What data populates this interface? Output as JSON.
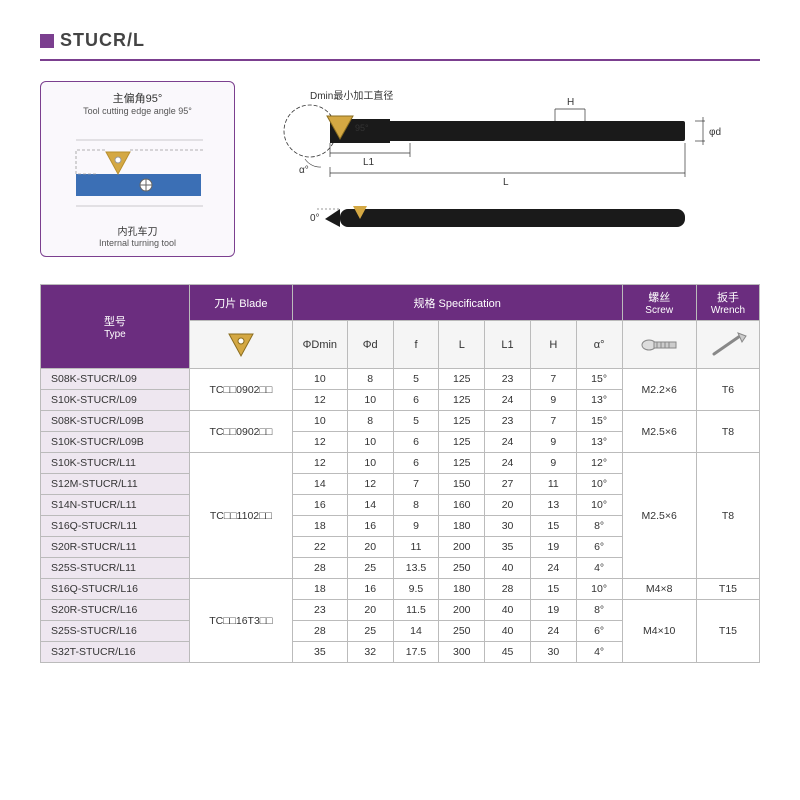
{
  "title": "STUCR/L",
  "colors": {
    "purple": "#6b2d7f",
    "purple_light": "#eee7f0",
    "purple_border": "#7b3f8f",
    "border": "#bbb",
    "blade_gold": "#d4a843",
    "tool_blue": "#3b6fb5",
    "tool_black": "#1a1a1a"
  },
  "callout": {
    "title_cn": "主偏角95°",
    "title_en": "Tool cutting edge angle 95°",
    "sub_cn": "内孔车刀",
    "sub_en": "Internal turning tool"
  },
  "tech_labels": {
    "dmin_cn": "Dmin最小加工直径",
    "angle_95": "95°",
    "L1": "L1",
    "L": "L",
    "H": "H",
    "d": "φd",
    "alpha": "α°",
    "zero": "0°"
  },
  "headers": {
    "type_cn": "型号",
    "type_en": "Type",
    "blade_cn": "刀片",
    "blade_en": "Blade",
    "spec_cn": "规格",
    "spec_en": "Specification",
    "screw_cn": "螺丝",
    "screw_en": "Screw",
    "wrench_cn": "扳手",
    "wrench_en": "Wrench",
    "dmin": "ΦDmin",
    "d": "Φd",
    "f": "f",
    "L": "L",
    "L1": "L1",
    "H": "H",
    "a": "α°"
  },
  "groups": [
    {
      "blade": "TC□□0902□□",
      "screw": "M2.2×6",
      "wrench": "T6",
      "rows": [
        {
          "type": "S08K-STUCR/L09",
          "dmin": "10",
          "d": "8",
          "f": "5",
          "L": "125",
          "L1": "23",
          "H": "7",
          "a": "15°"
        },
        {
          "type": "S10K-STUCR/L09",
          "dmin": "12",
          "d": "10",
          "f": "6",
          "L": "125",
          "L1": "24",
          "H": "9",
          "a": "13°"
        }
      ]
    },
    {
      "blade": "TC□□0902□□",
      "screw": "M2.5×6",
      "wrench": "T8",
      "rows": [
        {
          "type": "S08K-STUCR/L09B",
          "dmin": "10",
          "d": "8",
          "f": "5",
          "L": "125",
          "L1": "23",
          "H": "7",
          "a": "15°"
        },
        {
          "type": "S10K-STUCR/L09B",
          "dmin": "12",
          "d": "10",
          "f": "6",
          "L": "125",
          "L1": "24",
          "H": "9",
          "a": "13°"
        }
      ]
    },
    {
      "blade": "TC□□1102□□",
      "screw": "M2.5×6",
      "wrench": "T8",
      "rows": [
        {
          "type": "S10K-STUCR/L11",
          "dmin": "12",
          "d": "10",
          "f": "6",
          "L": "125",
          "L1": "24",
          "H": "9",
          "a": "12°"
        },
        {
          "type": "S12M-STUCR/L11",
          "dmin": "14",
          "d": "12",
          "f": "7",
          "L": "150",
          "L1": "27",
          "H": "11",
          "a": "10°"
        },
        {
          "type": "S14N-STUCR/L11",
          "dmin": "16",
          "d": "14",
          "f": "8",
          "L": "160",
          "L1": "20",
          "H": "13",
          "a": "10°"
        },
        {
          "type": "S16Q-STUCR/L11",
          "dmin": "18",
          "d": "16",
          "f": "9",
          "L": "180",
          "L1": "30",
          "H": "15",
          "a": "8°"
        },
        {
          "type": "S20R-STUCR/L11",
          "dmin": "22",
          "d": "20",
          "f": "11",
          "L": "200",
          "L1": "35",
          "H": "19",
          "a": "6°"
        },
        {
          "type": "S25S-STUCR/L11",
          "dmin": "28",
          "d": "25",
          "f": "13.5",
          "L": "250",
          "L1": "40",
          "H": "24",
          "a": "4°"
        }
      ]
    },
    {
      "blade": "TC□□16T3□□",
      "screw_split": [
        "M4×8",
        "M4×10"
      ],
      "screw_split_spans": [
        1,
        3
      ],
      "wrench_split": [
        "T15",
        "T15"
      ],
      "wrench_split_spans": [
        1,
        3
      ],
      "rows": [
        {
          "type": "S16Q-STUCR/L16",
          "dmin": "18",
          "d": "16",
          "f": "9.5",
          "L": "180",
          "L1": "28",
          "H": "15",
          "a": "10°"
        },
        {
          "type": "S20R-STUCR/L16",
          "dmin": "23",
          "d": "20",
          "f": "11.5",
          "L": "200",
          "L1": "40",
          "H": "19",
          "a": "8°"
        },
        {
          "type": "S25S-STUCR/L16",
          "dmin": "28",
          "d": "25",
          "f": "14",
          "L": "250",
          "L1": "40",
          "H": "24",
          "a": "6°"
        },
        {
          "type": "S32T-STUCR/L16",
          "dmin": "35",
          "d": "32",
          "f": "17.5",
          "L": "300",
          "L1": "45",
          "H": "30",
          "a": "4°"
        }
      ]
    }
  ]
}
